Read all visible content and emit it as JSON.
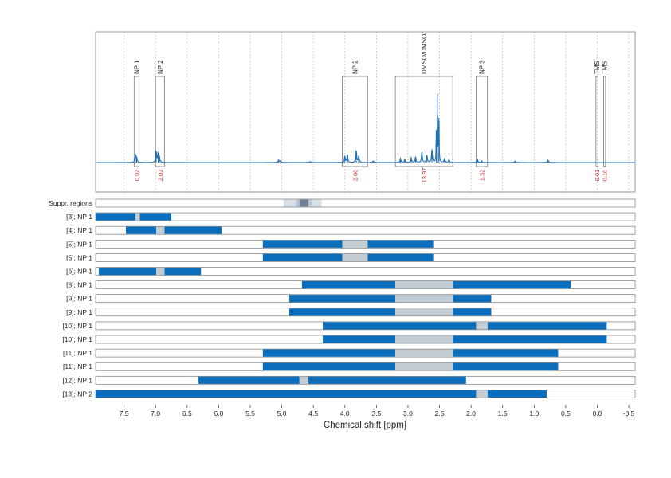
{
  "chart_data": {
    "type": "nmr-spectrum-with-range-bars",
    "xlabel": "Chemical shift [ppm]",
    "xlim": [
      7.95,
      -0.6
    ],
    "x_ticks": [
      7.5,
      7.0,
      6.5,
      6.0,
      5.5,
      5.0,
      4.5,
      4.0,
      3.5,
      3.0,
      2.5,
      2.0,
      1.5,
      1.0,
      0.5,
      0.0,
      -0.5
    ],
    "x_tick_labels": [
      "7.5",
      "7.0",
      "6.5",
      "6.0",
      "5.5",
      "5.0",
      "4.5",
      "4.0",
      "3.5",
      "3.0",
      "2.5",
      "2.0",
      "1.5",
      "1.0",
      "0.5",
      "0.0",
      "-0.5"
    ],
    "grid": true,
    "colors": {
      "spectrum": "#1f6fb4",
      "bar": "#0a6ebd",
      "gap": "#c3ccd3",
      "suppr_light": "#d6dee6",
      "suppr_mid": "#b9c6d2",
      "suppr_dark": "#6e8494",
      "integral_text": "#d42a2a",
      "box": "#7a7a7a",
      "grid": "#bdbdbd"
    },
    "spectrum_peaks": [
      {
        "x": 7.32,
        "y": 0.1,
        "w": 0.008
      },
      {
        "x": 7.3,
        "y": 0.06,
        "w": 0.008
      },
      {
        "x": 6.99,
        "y": 0.14,
        "w": 0.008
      },
      {
        "x": 6.96,
        "y": 0.11,
        "w": 0.008
      },
      {
        "x": 6.94,
        "y": 0.07,
        "w": 0.008
      },
      {
        "x": 5.05,
        "y": 0.03,
        "w": 0.01
      },
      {
        "x": 5.02,
        "y": 0.02,
        "w": 0.01
      },
      {
        "x": 4.55,
        "y": 0.01,
        "w": 0.02
      },
      {
        "x": 4.0,
        "y": 0.08,
        "w": 0.008
      },
      {
        "x": 3.96,
        "y": 0.1,
        "w": 0.008
      },
      {
        "x": 3.82,
        "y": 0.15,
        "w": 0.008
      },
      {
        "x": 3.78,
        "y": 0.08,
        "w": 0.008
      },
      {
        "x": 3.55,
        "y": 0.02,
        "w": 0.01
      },
      {
        "x": 3.12,
        "y": 0.05,
        "w": 0.008
      },
      {
        "x": 3.05,
        "y": 0.04,
        "w": 0.008
      },
      {
        "x": 2.95,
        "y": 0.06,
        "w": 0.008
      },
      {
        "x": 2.88,
        "y": 0.07,
        "w": 0.008
      },
      {
        "x": 2.78,
        "y": 0.13,
        "w": 0.008
      },
      {
        "x": 2.7,
        "y": 0.09,
        "w": 0.008
      },
      {
        "x": 2.62,
        "y": 0.16,
        "w": 0.008
      },
      {
        "x": 2.55,
        "y": 0.4,
        "w": 0.004
      },
      {
        "x": 2.53,
        "y": 0.85,
        "w": 0.004
      },
      {
        "x": 2.51,
        "y": 0.55,
        "w": 0.004
      },
      {
        "x": 2.42,
        "y": 0.05,
        "w": 0.008
      },
      {
        "x": 2.35,
        "y": 0.04,
        "w": 0.008
      },
      {
        "x": 1.9,
        "y": 0.04,
        "w": 0.008
      },
      {
        "x": 1.83,
        "y": 0.02,
        "w": 0.008
      },
      {
        "x": 1.3,
        "y": 0.02,
        "w": 0.01
      },
      {
        "x": 0.78,
        "y": 0.03,
        "w": 0.01
      }
    ],
    "regions": [
      {
        "label": "NP 1",
        "from": 7.34,
        "to": 7.26,
        "integral": "0.92"
      },
      {
        "label": "NP 2",
        "from": 7.0,
        "to": 6.86,
        "integral": "2.03"
      },
      {
        "label": "NP 2",
        "from": 4.04,
        "to": 3.64,
        "integral": "2.00"
      },
      {
        "label": "DMSO/DMSO/",
        "from": 3.2,
        "to": 2.29,
        "integral": "13.97"
      },
      {
        "label": "NP 3",
        "from": 1.92,
        "to": 1.74,
        "integral": "1.32"
      },
      {
        "label": "TMS",
        "from": 0.02,
        "to": 0.0,
        "integral": "0.01"
      },
      {
        "label": "TMS",
        "from": -0.1,
        "to": -0.13,
        "integral": "0.10"
      }
    ],
    "suppr_regions": {
      "label": "Suppr. regions",
      "from": 4.97,
      "to": 4.37,
      "mid": [
        4.77,
        4.53
      ],
      "core": [
        4.72,
        4.58
      ]
    },
    "rows": [
      {
        "label": "[3]; NP 1",
        "segments": [
          [
            7.95,
            7.32
          ],
          [
            7.25,
            6.75
          ]
        ],
        "gaps": [
          [
            7.32,
            7.25
          ]
        ]
      },
      {
        "label": "[4]; NP 1",
        "segments": [
          [
            7.47,
            6.99
          ],
          [
            6.86,
            5.95
          ]
        ],
        "gaps": [
          [
            6.99,
            6.86
          ]
        ]
      },
      {
        "label": "[5]; NP 1",
        "segments": [
          [
            5.3,
            4.04
          ],
          [
            3.64,
            2.6
          ]
        ],
        "gaps": [
          [
            4.04,
            3.64
          ]
        ]
      },
      {
        "label": "[5]; NP 1",
        "segments": [
          [
            5.3,
            4.04
          ],
          [
            3.64,
            2.6
          ]
        ],
        "gaps": [
          [
            4.04,
            3.64
          ]
        ]
      },
      {
        "label": "[6]; NP 1",
        "segments": [
          [
            7.9,
            6.99
          ],
          [
            6.86,
            6.28
          ]
        ],
        "gaps": [
          [
            6.99,
            6.86
          ]
        ]
      },
      {
        "label": "[8]; NP 1",
        "segments": [
          [
            4.68,
            3.2
          ],
          [
            2.29,
            0.42
          ]
        ],
        "gaps": [
          [
            3.2,
            2.29
          ]
        ]
      },
      {
        "label": "[9]; NP 1",
        "segments": [
          [
            4.88,
            3.2
          ],
          [
            2.29,
            1.68
          ]
        ],
        "gaps": [
          [
            3.2,
            2.29
          ]
        ]
      },
      {
        "label": "[9]; NP 1",
        "segments": [
          [
            4.88,
            3.2
          ],
          [
            2.29,
            1.68
          ]
        ],
        "gaps": [
          [
            3.2,
            2.29
          ]
        ]
      },
      {
        "label": "[10]; NP 1",
        "segments": [
          [
            4.35,
            1.92
          ],
          [
            1.74,
            -0.15
          ]
        ],
        "gaps": [
          [
            1.92,
            1.74
          ]
        ]
      },
      {
        "label": "[10]; NP 1",
        "segments": [
          [
            4.35,
            3.2
          ],
          [
            2.29,
            -0.15
          ]
        ],
        "gaps": [
          [
            3.2,
            2.29
          ]
        ]
      },
      {
        "label": "[11]; NP 1",
        "segments": [
          [
            5.3,
            3.2
          ],
          [
            2.29,
            0.62
          ]
        ],
        "gaps": [
          [
            3.2,
            2.29
          ]
        ]
      },
      {
        "label": "[11]; NP 1",
        "segments": [
          [
            5.3,
            3.2
          ],
          [
            2.29,
            0.62
          ]
        ],
        "gaps": [
          [
            3.2,
            2.29
          ]
        ]
      },
      {
        "label": "[12]; NP 1",
        "segments": [
          [
            6.32,
            4.72
          ],
          [
            4.58,
            2.08
          ]
        ],
        "gaps": [
          [
            4.72,
            4.58
          ]
        ]
      },
      {
        "label": "[13]; NP 2",
        "segments": [
          [
            7.95,
            1.92
          ],
          [
            1.74,
            0.8
          ]
        ],
        "gaps": [
          [
            1.92,
            1.74
          ]
        ]
      }
    ]
  }
}
